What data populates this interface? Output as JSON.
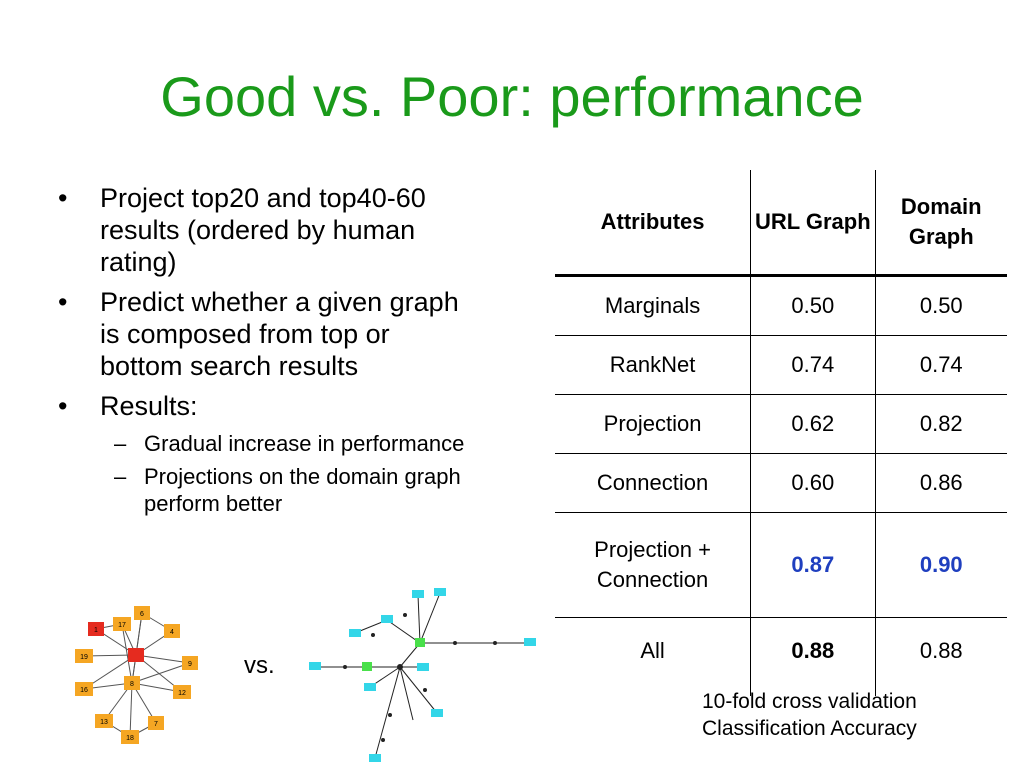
{
  "slide": {
    "title": "Good vs. Poor: performance"
  },
  "bullets": [
    {
      "text": "Project top20 and top40-60 results (ordered by human rating)"
    },
    {
      "text": "Predict whether a given graph is composed from top or bottom search results"
    },
    {
      "text": "Results:"
    }
  ],
  "sub_bullets": [
    {
      "text": "Gradual increase in performance"
    },
    {
      "text": "Projections on the domain graph perform better"
    }
  ],
  "bullet_marker": "•",
  "sub_marker": "–",
  "table": {
    "headers": [
      "Attributes",
      "URL Graph",
      "Domain Graph"
    ],
    "rows": [
      {
        "attr": "Marginals",
        "url": "0.50",
        "domain": "0.50"
      },
      {
        "attr": "RankNet",
        "url": "0.74",
        "domain": "0.74"
      },
      {
        "attr": "Projection",
        "url": "0.62",
        "domain": "0.82"
      },
      {
        "attr": "Connection",
        "url": "0.60",
        "domain": "0.86"
      },
      {
        "attr": "Projection + Connection",
        "url": "0.87",
        "domain": "0.90"
      },
      {
        "attr": "All",
        "url": "0.88",
        "domain": "0.88"
      }
    ]
  },
  "caption": {
    "line1": "10-fold cross validation",
    "line2": "Classification Accuracy"
  },
  "vs_label": "vs.",
  "graph_left": {
    "node_labels": [
      "6",
      "17",
      "1",
      "4",
      "19",
      "9",
      "8",
      "16",
      "12",
      "13",
      "7",
      "18"
    ],
    "colors": {
      "node": "#f5a623",
      "highlight": "#e52b1f",
      "edge": "#555555"
    }
  },
  "graph_right": {
    "colors": {
      "node": "#33d6e8",
      "highlight": "#49e04a",
      "edge": "#222222"
    }
  }
}
